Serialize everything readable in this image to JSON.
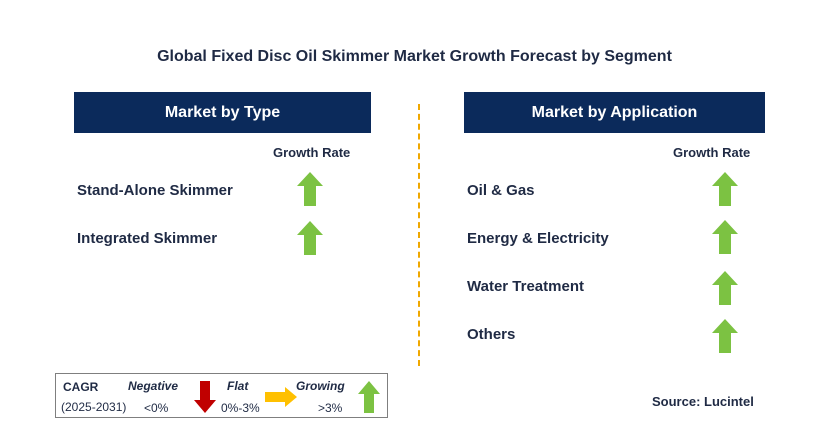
{
  "title": "Global Fixed Disc Oil Skimmer Market Growth Forecast by Segment",
  "left_panel": {
    "header": "Market by Type",
    "growth_rate_label": "Growth Rate",
    "items": [
      {
        "label": "Stand-Alone Skimmer",
        "trend": "growing"
      },
      {
        "label": "Integrated Skimmer",
        "trend": "growing"
      }
    ]
  },
  "right_panel": {
    "header": "Market by Application",
    "growth_rate_label": "Growth Rate",
    "items": [
      {
        "label": "Oil & Gas",
        "trend": "growing"
      },
      {
        "label": "Energy & Electricity",
        "trend": "growing"
      },
      {
        "label": "Water Treatment",
        "trend": "growing"
      },
      {
        "label": "Others",
        "trend": "growing"
      }
    ]
  },
  "legend": {
    "cagr_label": "CAGR",
    "period": "(2025-2031)",
    "negative_label": "Negative",
    "negative_value": "<0%",
    "flat_label": "Flat",
    "flat_value": "0%-3%",
    "growing_label": "Growing",
    "growing_value": ">3%"
  },
  "source": "Source: Lucintel",
  "colors": {
    "header_bg": "#0b2a5b",
    "growing": "#7cc242",
    "negative": "#c00000",
    "flat": "#ffc000",
    "divider": "#f0a800"
  },
  "icons": {
    "growing": "green-up-arrow-icon",
    "negative": "red-down-arrow-icon",
    "flat": "yellow-right-arrow-icon"
  }
}
